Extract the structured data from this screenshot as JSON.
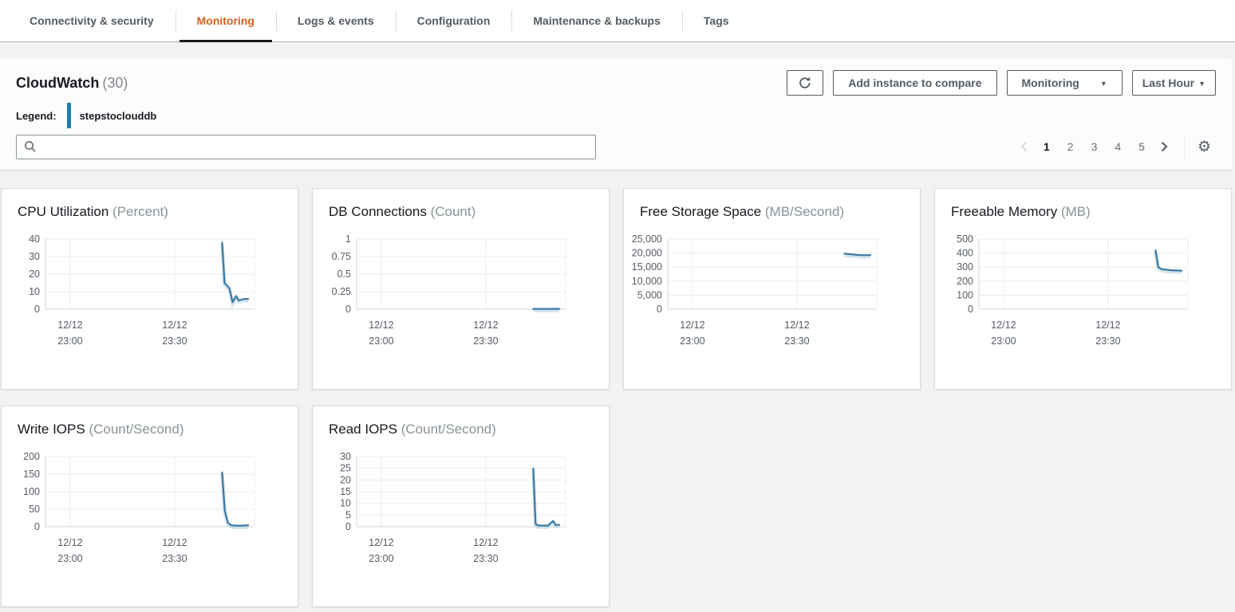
{
  "tabs": {
    "items": [
      {
        "label": "Connectivity & security",
        "active": false
      },
      {
        "label": "Monitoring",
        "active": true
      },
      {
        "label": "Logs & events",
        "active": false
      },
      {
        "label": "Configuration",
        "active": false
      },
      {
        "label": "Maintenance & backups",
        "active": false
      },
      {
        "label": "Tags",
        "active": false
      }
    ]
  },
  "header": {
    "title": "CloudWatch",
    "count": "(30)",
    "legend_label": "Legend:",
    "legend_item": "stepstoclouddb",
    "search_placeholder": "",
    "search_value": "",
    "buttons": {
      "refresh": "Refresh",
      "add_instance": "Add instance to compare",
      "monitoring": "Monitoring",
      "time_range": "Last Hour"
    }
  },
  "pagination": {
    "pages": [
      "1",
      "2",
      "3",
      "4",
      "5"
    ],
    "current": "1"
  },
  "colors": {
    "accent_orange": "#d4611c",
    "tab_underline": "#16191f",
    "chart_line": "#3b79a5",
    "chart_line_halo": "#a8c9de",
    "legend_bar": "#1f7ea8",
    "grid_line": "#ececec",
    "axis_line": "#cfd4d6",
    "tick_text": "#545b64"
  },
  "chart_data": [
    {
      "type": "line",
      "title": "CPU Utilization",
      "unit": "Percent",
      "ymax": 40,
      "ylim": [
        0,
        40
      ],
      "y_ticks": [
        "40",
        "30",
        "20",
        "10",
        "0"
      ],
      "x_ticks": [
        {
          "date": "12/12",
          "time": "23:00",
          "pos": 0.118
        },
        {
          "date": "12/12",
          "time": "23:30",
          "pos": 0.618
        }
      ],
      "grid_x": [
        0.118,
        0.618,
        1.0
      ],
      "series": [
        {
          "name": "stepstoclouddb",
          "points": [
            [
              0.845,
              38
            ],
            [
              0.857,
              15
            ],
            [
              0.88,
              12
            ],
            [
              0.895,
              4
            ],
            [
              0.912,
              7.5
            ],
            [
              0.925,
              5
            ],
            [
              0.95,
              5.8
            ],
            [
              0.97,
              5.8
            ]
          ]
        }
      ]
    },
    {
      "type": "line",
      "title": "DB Connections",
      "unit": "Count",
      "ymax": 1,
      "ylim": [
        0,
        1
      ],
      "y_ticks": [
        "1",
        "0.75",
        "0.5",
        "0.25",
        "0"
      ],
      "x_ticks": [
        {
          "date": "12/12",
          "time": "23:00",
          "pos": 0.118
        },
        {
          "date": "12/12",
          "time": "23:30",
          "pos": 0.618
        }
      ],
      "grid_x": [
        0.118,
        0.618,
        1.0
      ],
      "series": [
        {
          "name": "stepstoclouddb",
          "points": [
            [
              0.845,
              0.005
            ],
            [
              0.97,
              0.005
            ]
          ]
        }
      ]
    },
    {
      "type": "line",
      "title": "Free Storage Space",
      "unit": "MB/Second",
      "ymax": 25000,
      "ylim": [
        0,
        25000
      ],
      "y_ticks": [
        "25,000",
        "20,000",
        "15,000",
        "10,000",
        "5,000",
        "0"
      ],
      "x_ticks": [
        {
          "date": "12/12",
          "time": "23:00",
          "pos": 0.118
        },
        {
          "date": "12/12",
          "time": "23:30",
          "pos": 0.618
        }
      ],
      "grid_x": [
        0.118,
        0.618,
        1.0
      ],
      "series": [
        {
          "name": "stepstoclouddb",
          "points": [
            [
              0.845,
              19800
            ],
            [
              0.875,
              19600
            ],
            [
              0.92,
              19250
            ],
            [
              0.97,
              19250
            ]
          ]
        }
      ]
    },
    {
      "type": "line",
      "title": "Freeable Memory",
      "unit": "MB",
      "ymax": 500,
      "ylim": [
        0,
        500
      ],
      "y_ticks": [
        "500",
        "400",
        "300",
        "200",
        "100",
        "0"
      ],
      "x_ticks": [
        {
          "date": "12/12",
          "time": "23:00",
          "pos": 0.118
        },
        {
          "date": "12/12",
          "time": "23:30",
          "pos": 0.618
        }
      ],
      "grid_x": [
        0.118,
        0.618,
        1.0
      ],
      "series": [
        {
          "name": "stepstoclouddb",
          "points": [
            [
              0.845,
              420
            ],
            [
              0.858,
              300
            ],
            [
              0.875,
              285
            ],
            [
              0.92,
              278
            ],
            [
              0.97,
              275
            ]
          ]
        }
      ]
    },
    {
      "type": "line",
      "title": "Write IOPS",
      "unit": "Count/Second",
      "ymax": 200,
      "ylim": [
        0,
        200
      ],
      "y_ticks": [
        "200",
        "150",
        "100",
        "50",
        "0"
      ],
      "x_ticks": [
        {
          "date": "12/12",
          "time": "23:00",
          "pos": 0.118
        },
        {
          "date": "12/12",
          "time": "23:30",
          "pos": 0.618
        }
      ],
      "grid_x": [
        0.118,
        0.618,
        1.0
      ],
      "series": [
        {
          "name": "stepstoclouddb",
          "points": [
            [
              0.845,
              155
            ],
            [
              0.858,
              45
            ],
            [
              0.872,
              12
            ],
            [
              0.888,
              4
            ],
            [
              0.93,
              3
            ],
            [
              0.97,
              4
            ]
          ]
        }
      ]
    },
    {
      "type": "line",
      "title": "Read IOPS",
      "unit": "Count/Second",
      "ymax": 30,
      "ylim": [
        0,
        30
      ],
      "y_ticks": [
        "30",
        "25",
        "20",
        "15",
        "10",
        "5",
        "0"
      ],
      "x_ticks": [
        {
          "date": "12/12",
          "time": "23:00",
          "pos": 0.118
        },
        {
          "date": "12/12",
          "time": "23:30",
          "pos": 0.618
        }
      ],
      "grid_x": [
        0.118,
        0.618,
        1.0
      ],
      "series": [
        {
          "name": "stepstoclouddb",
          "points": [
            [
              0.845,
              25
            ],
            [
              0.856,
              1.2
            ],
            [
              0.87,
              0.5
            ],
            [
              0.915,
              0.5
            ],
            [
              0.94,
              2.5
            ],
            [
              0.952,
              0.8
            ],
            [
              0.97,
              0.8
            ]
          ]
        }
      ]
    }
  ]
}
